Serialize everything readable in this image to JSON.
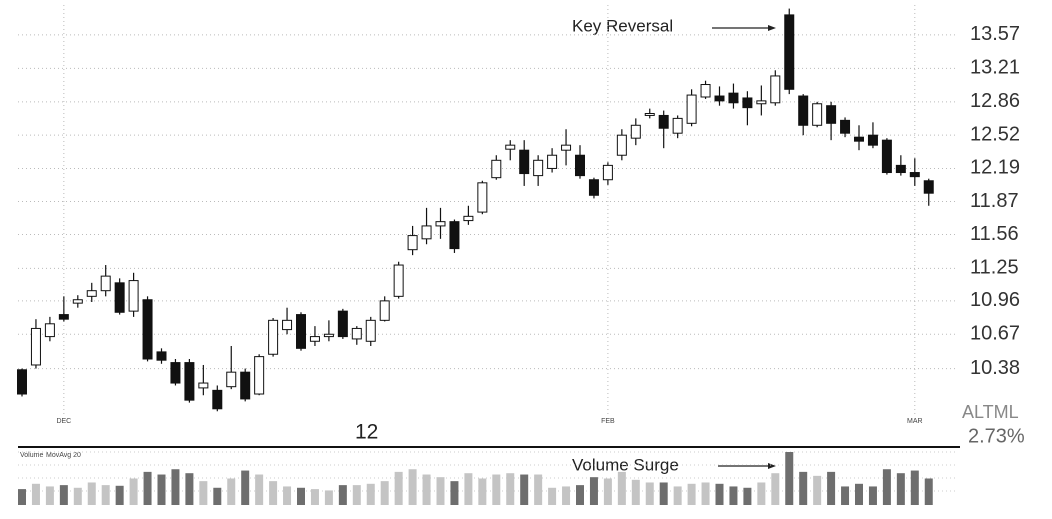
{
  "chart_data": [
    {
      "type": "candlestick",
      "log": true,
      "grid": true,
      "up_color": "#ffffff",
      "down_color": "#111111",
      "categories": [
        null,
        null,
        null,
        "DEC",
        null,
        null,
        null,
        null,
        null,
        null,
        null,
        null,
        null,
        null,
        null,
        null,
        null,
        null,
        null,
        null,
        null,
        null,
        null,
        null,
        null,
        null,
        null,
        null,
        null,
        null,
        null,
        null,
        null,
        null,
        null,
        null,
        null,
        null,
        null,
        null,
        null,
        null,
        "FEB",
        null,
        null,
        null,
        null,
        null,
        null,
        null,
        null,
        null,
        null,
        null,
        null,
        null,
        null,
        null,
        null,
        null,
        null,
        null,
        null,
        null,
        "MAR",
        null
      ],
      "open": [
        10.37,
        10.41,
        10.65,
        10.84,
        10.94,
        11.0,
        11.05,
        11.12,
        10.87,
        10.97,
        10.52,
        10.43,
        10.43,
        10.22,
        10.2,
        10.23,
        10.35,
        10.17,
        10.5,
        10.71,
        10.84,
        10.61,
        10.65,
        10.87,
        10.63,
        10.61,
        10.79,
        11.0,
        11.42,
        11.52,
        11.64,
        11.68,
        11.69,
        11.77,
        12.1,
        12.38,
        12.37,
        12.12,
        12.19,
        12.37,
        12.32,
        12.08,
        12.08,
        12.32,
        12.49,
        12.72,
        12.72,
        12.54,
        12.64,
        12.91,
        12.92,
        12.95,
        12.9,
        12.84,
        12.85,
        13.79,
        12.92,
        12.62,
        12.82,
        12.67,
        12.5,
        12.52,
        12.47,
        12.22,
        12.15,
        12.07
      ],
      "high": [
        10.38,
        10.8,
        10.82,
        11.0,
        11.01,
        11.12,
        11.28,
        11.16,
        11.21,
        11.0,
        10.55,
        10.46,
        10.46,
        10.41,
        10.24,
        10.57,
        10.38,
        10.5,
        10.81,
        10.9,
        10.86,
        10.74,
        10.79,
        10.89,
        10.74,
        10.82,
        11.0,
        11.31,
        11.64,
        11.81,
        11.81,
        11.7,
        11.83,
        12.07,
        12.32,
        12.47,
        12.47,
        12.32,
        12.39,
        12.58,
        12.42,
        12.1,
        12.25,
        12.58,
        12.69,
        12.79,
        12.77,
        12.72,
        12.99,
        13.08,
        13.02,
        13.05,
        12.97,
        13.03,
        13.19,
        13.86,
        12.94,
        12.86,
        12.86,
        12.7,
        12.62,
        12.65,
        12.49,
        12.32,
        12.29,
        12.09
      ],
      "low": [
        10.15,
        10.38,
        10.61,
        10.78,
        10.9,
        10.95,
        11.0,
        10.84,
        10.82,
        10.44,
        10.42,
        10.24,
        10.1,
        10.16,
        10.03,
        10.21,
        10.11,
        10.16,
        10.48,
        10.67,
        10.53,
        10.57,
        10.61,
        10.63,
        10.58,
        10.57,
        10.78,
        10.98,
        11.37,
        11.47,
        11.52,
        11.39,
        11.65,
        11.75,
        12.08,
        12.27,
        12.02,
        12.02,
        12.15,
        12.22,
        12.09,
        11.9,
        12.03,
        12.27,
        12.42,
        12.69,
        12.39,
        12.49,
        12.61,
        12.89,
        12.82,
        12.79,
        12.62,
        12.72,
        12.82,
        12.94,
        12.52,
        12.6,
        12.47,
        12.5,
        12.37,
        12.39,
        12.13,
        12.12,
        12.02,
        11.83
      ],
      "close": [
        10.17,
        10.72,
        10.76,
        10.8,
        10.97,
        11.05,
        11.18,
        10.86,
        11.14,
        10.46,
        10.45,
        10.26,
        10.12,
        10.26,
        10.05,
        10.35,
        10.13,
        10.48,
        10.79,
        10.79,
        10.55,
        10.65,
        10.67,
        10.65,
        10.72,
        10.79,
        10.96,
        11.28,
        11.55,
        11.64,
        11.68,
        11.43,
        11.73,
        12.05,
        12.27,
        12.42,
        12.14,
        12.27,
        12.32,
        12.42,
        12.12,
        11.93,
        12.22,
        12.52,
        12.62,
        12.74,
        12.59,
        12.69,
        12.93,
        13.04,
        12.87,
        12.85,
        12.8,
        12.87,
        13.13,
        12.99,
        12.62,
        12.84,
        12.64,
        12.54,
        12.46,
        12.42,
        12.15,
        12.15,
        12.11,
        11.95
      ],
      "ylim": [
        10.0,
        13.9
      ],
      "yticks": [
        10.38,
        10.67,
        10.96,
        11.25,
        11.56,
        11.87,
        12.19,
        12.52,
        12.86,
        13.21,
        13.57
      ],
      "annotation": "Key Reversal",
      "year_label": "12",
      "symbol": "ALTML",
      "change": "2.73%"
    },
    {
      "type": "bar",
      "title": "Volume",
      "ma_label": "MovAvg 20",
      "up_color": "#c4c4c4",
      "down_color": "#6e6e6e",
      "values": [
        120000,
        160000,
        140000,
        150000,
        130000,
        170000,
        150000,
        145000,
        200000,
        250000,
        230000,
        270000,
        240000,
        180000,
        130000,
        200000,
        260000,
        230000,
        180000,
        140000,
        130000,
        120000,
        110000,
        150000,
        150000,
        160000,
        180000,
        250000,
        270000,
        230000,
        210000,
        180000,
        240000,
        200000,
        230000,
        240000,
        230000,
        230000,
        130000,
        140000,
        150000,
        210000,
        200000,
        250000,
        190000,
        170000,
        170000,
        140000,
        160000,
        170000,
        160000,
        140000,
        130000,
        170000,
        240000,
        400000,
        250000,
        220000,
        250000,
        140000,
        160000,
        140000,
        270000,
        240000,
        260000,
        200000
      ],
      "ylim": [
        0,
        400000
      ],
      "annotation": "Volume Surge"
    }
  ]
}
